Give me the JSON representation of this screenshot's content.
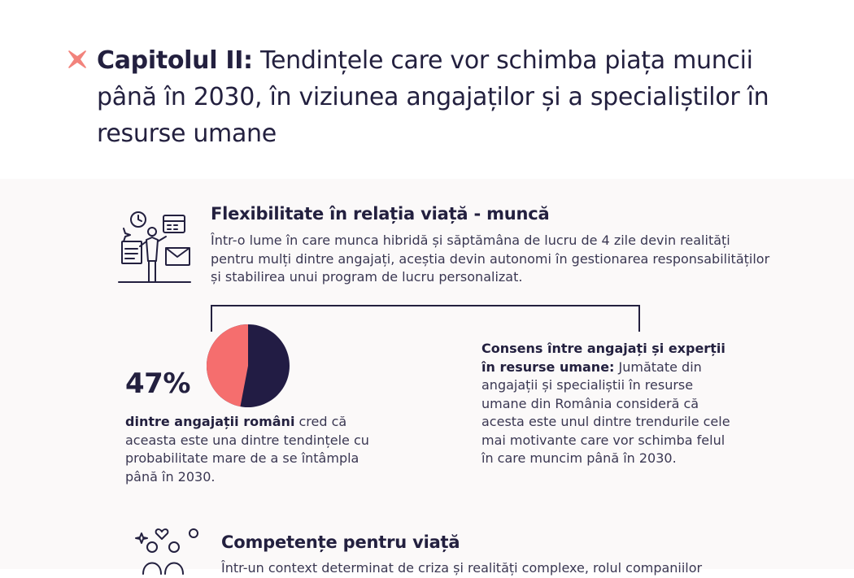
{
  "header": {
    "chapter_label": "Capitolul II:",
    "chapter_title": "Tendințele care vor schimba piața muncii până în 2030, în viziunea angajaților și a specialiștilor în resurse umane",
    "accent_color": "#f2837c",
    "text_color": "#23203f"
  },
  "section_flex": {
    "icon": "work-life-balance-icon",
    "title": "Flexibilitate în relația viață - muncă",
    "body": "Într-o lume în care munca hibridă și săptămâna de lucru de 4 zile devin realități pentru mulți dintre angajați, aceștia devin autonomi în gestionarea responsabilităților și stabilirea unui program de lucru personalizat.",
    "stat": {
      "value": "47%",
      "fraction": 0.47,
      "highlight": "dintre angajații români",
      "caption": " cred că aceasta este una dintre tendințele cu probabilitate mare de a se întâmpla până în 2030.",
      "pie_colors": [
        "#f56e6e",
        "#221c44"
      ]
    },
    "consens": {
      "highlight": "Consens între angajați și experții în resurse umane:",
      "text": " Jumătate din angajații și specialiștii în resurse umane din România consideră că acesta este unul dintre trendurile cele mai motivante care vor schimba felul în care muncim până în 2030."
    }
  },
  "section_comp": {
    "icon": "people-heart-icon",
    "title": "Competențe pentru viață",
    "body_partial": "Într-un context determinat de criza și realități complexe, rolul companiilor"
  }
}
